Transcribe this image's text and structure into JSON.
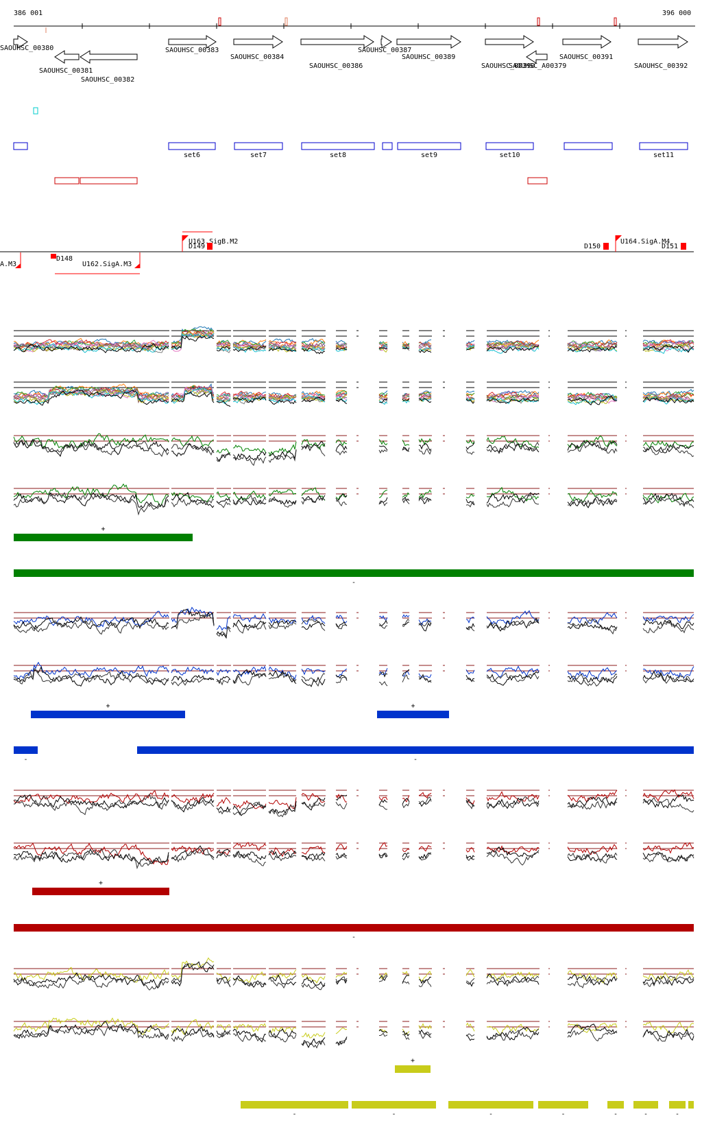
{
  "ruler": {
    "start_label": "386 001",
    "end_label": "396 000"
  },
  "genes": [
    {
      "id": "SAOUHSC_00380",
      "strand": "+",
      "label_row": 0
    },
    {
      "id": "SAOUHSC_00381",
      "strand": "-",
      "label_row": 1
    },
    {
      "id": "SAOUHSC_00382",
      "strand": "-",
      "label_row": 2
    },
    {
      "id": "SAOUHSC_00383",
      "strand": "+",
      "label_row": 0
    },
    {
      "id": "SAOUHSC_00384",
      "strand": "+",
      "label_row": 1
    },
    {
      "id": "SAOUHSC_00386",
      "strand": "+",
      "label_row": 2
    },
    {
      "id": "SAOUHSC_00387",
      "strand": "+",
      "label_row": 0
    },
    {
      "id": "SAOUHSC_00389",
      "strand": "+",
      "label_row": 1
    },
    {
      "id": "SAOUHSC_00390",
      "strand": "+",
      "label_row": 2
    },
    {
      "id": "SAOUHSC_A00379",
      "strand": "-",
      "label_row": 2
    },
    {
      "id": "SAOUHSC_00391",
      "strand": "+",
      "label_row": 1
    },
    {
      "id": "SAOUHSC_00392",
      "strand": "+",
      "label_row": 2
    }
  ],
  "sets_plus": [
    "",
    "set6",
    "set7",
    "set8",
    "",
    "set9",
    "set10",
    "",
    "set11"
  ],
  "sets_minus_count": 3,
  "promoters": [
    {
      "label": "A.M3",
      "strand": "-"
    },
    {
      "label": "D148",
      "strand": "-"
    },
    {
      "label": "U162.SigA.M3",
      "strand": "-"
    },
    {
      "label": "U163.SigB.M2",
      "strand": "+"
    },
    {
      "label": "D149",
      "strand": "+"
    },
    {
      "label": "D150",
      "strand": "+"
    },
    {
      "label": "U164.SigA.M4",
      "strand": "+"
    },
    {
      "label": "D151",
      "strand": "+"
    }
  ],
  "colors": {
    "gene": "#000000",
    "set_plus": "#0000cc",
    "set_minus": "#cc0000",
    "promoter": "#ff0000",
    "threshold": "#8b1a1a",
    "green": "#008000",
    "blue": "#0033cc",
    "red": "#b30000",
    "yellow": "#c8cc1a"
  },
  "chart_data": {
    "type": "line",
    "title": "",
    "x_range": [
      386001,
      396000
    ],
    "series": [
      {
        "color_key": "green",
        "plus_label": "+",
        "minus_label": "-"
      },
      {
        "color_key": "blue",
        "plus_label": "+",
        "minus_label": "-"
      },
      {
        "color_key": "red",
        "plus_label": "+",
        "minus_label": "-"
      },
      {
        "color_key": "yellow",
        "plus_label": "+",
        "minus_label": "-"
      }
    ]
  }
}
